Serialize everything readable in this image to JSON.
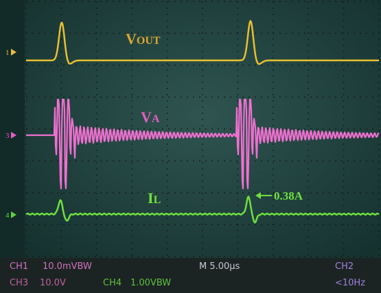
{
  "traces": {
    "vout": {
      "main": "V",
      "sub": "OUT"
    },
    "va": {
      "main": "V",
      "sub": "A"
    },
    "il": {
      "main": "I",
      "sub": "L"
    }
  },
  "annotation": "0.38A",
  "markers": [
    "1",
    "3",
    "4"
  ],
  "status": {
    "ch1": "CH1",
    "ch1_scale": "10.0mVBW",
    "timebase": "M 5.00µs",
    "ch2": "CH2",
    "ch3": "CH3",
    "ch3_scale": "10.0V",
    "ch4": "CH4",
    "ch4_scale": "1.00VBW",
    "trigger": "<10Hz"
  }
}
